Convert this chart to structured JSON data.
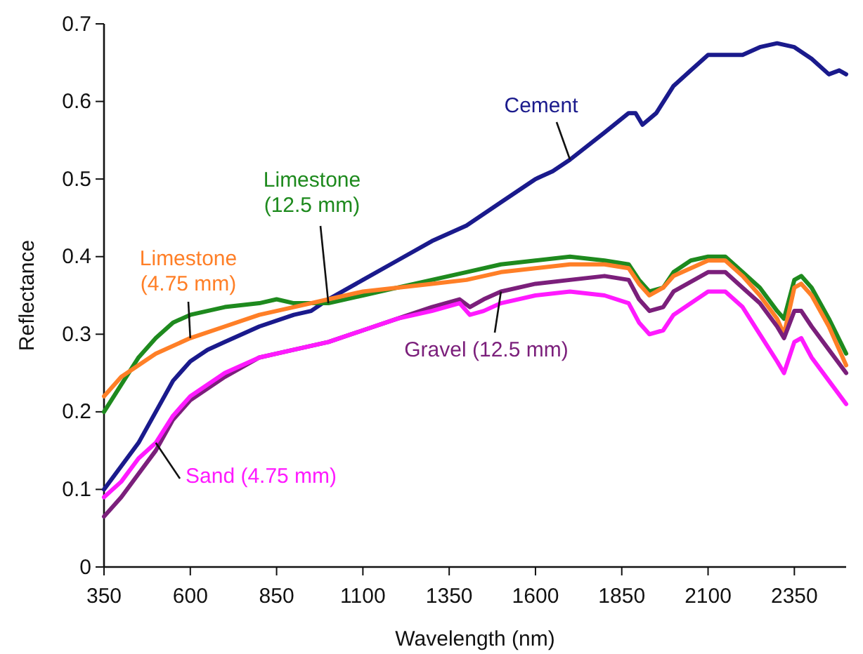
{
  "chart_data": {
    "type": "line",
    "xlabel": "Wavelength (nm)",
    "ylabel": "Reflectance",
    "xlim": [
      350,
      2500
    ],
    "xticks": [
      350,
      600,
      850,
      1100,
      1350,
      1600,
      1850,
      2100,
      2350
    ],
    "ylim": [
      0,
      0.7
    ],
    "yticks": [
      0,
      0.1,
      0.2,
      0.3,
      0.4,
      0.5,
      0.6,
      0.7
    ],
    "grid": false,
    "legend": false,
    "marker": "none",
    "line_style": "solid",
    "series": [
      {
        "name": "Cement",
        "color": "#1a1a8c",
        "x": [
          350,
          400,
          450,
          500,
          550,
          600,
          650,
          700,
          800,
          900,
          950,
          1000,
          1100,
          1200,
          1300,
          1400,
          1500,
          1600,
          1650,
          1700,
          1800,
          1870,
          1890,
          1910,
          1950,
          2000,
          2050,
          2100,
          2150,
          2200,
          2250,
          2300,
          2350,
          2400,
          2450,
          2480,
          2500
        ],
        "values": [
          0.1,
          0.13,
          0.16,
          0.2,
          0.24,
          0.265,
          0.28,
          0.29,
          0.31,
          0.325,
          0.33,
          0.345,
          0.37,
          0.395,
          0.42,
          0.44,
          0.47,
          0.5,
          0.51,
          0.525,
          0.56,
          0.585,
          0.585,
          0.57,
          0.585,
          0.62,
          0.64,
          0.66,
          0.66,
          0.66,
          0.67,
          0.675,
          0.67,
          0.655,
          0.635,
          0.64,
          0.635
        ]
      },
      {
        "name": "Limestone (12.5 mm)",
        "color": "#1e8a1e",
        "x": [
          350,
          400,
          450,
          500,
          550,
          600,
          700,
          800,
          850,
          900,
          1000,
          1100,
          1200,
          1300,
          1400,
          1500,
          1600,
          1700,
          1800,
          1870,
          1900,
          1930,
          1970,
          2000,
          2050,
          2100,
          2150,
          2200,
          2250,
          2300,
          2320,
          2350,
          2370,
          2400,
          2450,
          2500
        ],
        "values": [
          0.2,
          0.235,
          0.27,
          0.295,
          0.315,
          0.325,
          0.335,
          0.34,
          0.345,
          0.34,
          0.34,
          0.35,
          0.36,
          0.37,
          0.38,
          0.39,
          0.395,
          0.4,
          0.395,
          0.39,
          0.37,
          0.355,
          0.36,
          0.38,
          0.395,
          0.4,
          0.4,
          0.38,
          0.36,
          0.33,
          0.32,
          0.37,
          0.375,
          0.36,
          0.32,
          0.275
        ]
      },
      {
        "name": "Limestone (4.75 mm)",
        "color": "#ff7f27",
        "x": [
          350,
          400,
          450,
          500,
          600,
          700,
          800,
          900,
          1000,
          1100,
          1200,
          1300,
          1400,
          1500,
          1600,
          1700,
          1800,
          1870,
          1900,
          1930,
          1970,
          2000,
          2100,
          2150,
          2200,
          2250,
          2300,
          2320,
          2350,
          2370,
          2400,
          2450,
          2500
        ],
        "values": [
          0.22,
          0.245,
          0.26,
          0.275,
          0.295,
          0.31,
          0.325,
          0.335,
          0.345,
          0.355,
          0.36,
          0.365,
          0.37,
          0.38,
          0.385,
          0.39,
          0.39,
          0.385,
          0.365,
          0.35,
          0.36,
          0.375,
          0.395,
          0.395,
          0.375,
          0.35,
          0.32,
          0.3,
          0.36,
          0.365,
          0.35,
          0.31,
          0.26
        ]
      },
      {
        "name": "Gravel (12.5 mm)",
        "color": "#7b1f7b",
        "x": [
          350,
          400,
          450,
          500,
          550,
          600,
          700,
          800,
          900,
          1000,
          1100,
          1200,
          1300,
          1380,
          1410,
          1450,
          1500,
          1600,
          1700,
          1800,
          1870,
          1900,
          1930,
          1970,
          2000,
          2100,
          2150,
          2200,
          2250,
          2300,
          2320,
          2350,
          2370,
          2400,
          2450,
          2500
        ],
        "values": [
          0.065,
          0.09,
          0.12,
          0.15,
          0.19,
          0.215,
          0.245,
          0.27,
          0.28,
          0.29,
          0.305,
          0.32,
          0.335,
          0.345,
          0.335,
          0.345,
          0.355,
          0.365,
          0.37,
          0.375,
          0.37,
          0.345,
          0.33,
          0.335,
          0.355,
          0.38,
          0.38,
          0.36,
          0.34,
          0.31,
          0.295,
          0.33,
          0.33,
          0.31,
          0.28,
          0.25
        ]
      },
      {
        "name": "Sand (4.75 mm)",
        "color": "#ff1aff",
        "x": [
          350,
          400,
          450,
          500,
          550,
          600,
          700,
          800,
          900,
          1000,
          1100,
          1200,
          1300,
          1380,
          1410,
          1450,
          1500,
          1600,
          1700,
          1800,
          1870,
          1900,
          1930,
          1970,
          2000,
          2100,
          2150,
          2200,
          2250,
          2300,
          2320,
          2350,
          2370,
          2400,
          2450,
          2500
        ],
        "values": [
          0.09,
          0.11,
          0.14,
          0.16,
          0.195,
          0.22,
          0.25,
          0.27,
          0.28,
          0.29,
          0.305,
          0.32,
          0.33,
          0.34,
          0.325,
          0.33,
          0.34,
          0.35,
          0.355,
          0.35,
          0.34,
          0.315,
          0.3,
          0.305,
          0.325,
          0.355,
          0.355,
          0.335,
          0.3,
          0.265,
          0.25,
          0.29,
          0.295,
          0.27,
          0.24,
          0.21
        ]
      }
    ]
  }
}
